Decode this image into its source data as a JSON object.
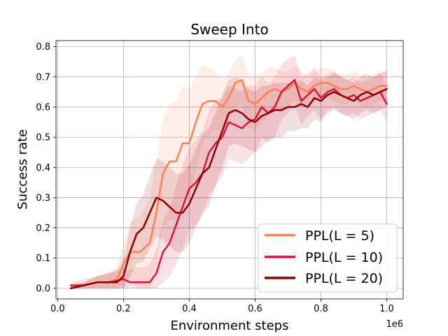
{
  "chart_data": {
    "type": "line",
    "title": "Sweep Into",
    "xlabel": "Environment steps",
    "ylabel": "Success rate",
    "x_offset_label": "1e6",
    "xlim": [
      -0.005,
      1.05
    ],
    "ylim": [
      -0.035,
      0.82
    ],
    "xticks": [
      0.0,
      0.2,
      0.4,
      0.6,
      0.8,
      1.0
    ],
    "xtick_labels": [
      "0.0",
      "0.2",
      "0.4",
      "0.6",
      "0.8",
      "1.0"
    ],
    "yticks": [
      0.0,
      0.1,
      0.2,
      0.3,
      0.4,
      0.5,
      0.6,
      0.7,
      0.8
    ],
    "ytick_labels": [
      "0.0",
      "0.1",
      "0.2",
      "0.3",
      "0.4",
      "0.5",
      "0.6",
      "0.7",
      "0.8"
    ],
    "grid": true,
    "legend_position": "bottom-right",
    "series": [
      {
        "name": "PPL(L = 5)",
        "color": "#ff7f50",
        "x": [
          0.04,
          0.08,
          0.12,
          0.15,
          0.18,
          0.2,
          0.22,
          0.25,
          0.28,
          0.3,
          0.32,
          0.34,
          0.36,
          0.38,
          0.4,
          0.42,
          0.44,
          0.46,
          0.48,
          0.5,
          0.52,
          0.54,
          0.56,
          0.58,
          0.6,
          0.62,
          0.64,
          0.66,
          0.68,
          0.7,
          0.72,
          0.74,
          0.76,
          0.78,
          0.8,
          0.82,
          0.84,
          0.86,
          0.88,
          0.9,
          0.92,
          0.94,
          0.96,
          0.98,
          1.0
        ],
        "values": [
          0.0,
          0.01,
          0.02,
          0.02,
          0.03,
          0.08,
          0.12,
          0.12,
          0.15,
          0.25,
          0.38,
          0.42,
          0.42,
          0.48,
          0.48,
          0.55,
          0.61,
          0.62,
          0.62,
          0.6,
          0.63,
          0.68,
          0.69,
          0.62,
          0.61,
          0.63,
          0.65,
          0.66,
          0.65,
          0.66,
          0.68,
          0.66,
          0.65,
          0.67,
          0.68,
          0.68,
          0.67,
          0.66,
          0.66,
          0.67,
          0.66,
          0.65,
          0.66,
          0.67,
          0.67
        ],
        "band_width": [
          0.01,
          0.01,
          0.02,
          0.03,
          0.04,
          0.07,
          0.1,
          0.12,
          0.15,
          0.17,
          0.18,
          0.19,
          0.2,
          0.19,
          0.18,
          0.15,
          0.13,
          0.11,
          0.1,
          0.09,
          0.08,
          0.08,
          0.08,
          0.09,
          0.09,
          0.08,
          0.08,
          0.07,
          0.07,
          0.06,
          0.06,
          0.06,
          0.05,
          0.05,
          0.05,
          0.05,
          0.05,
          0.05,
          0.05,
          0.05,
          0.05,
          0.05,
          0.05,
          0.05,
          0.05
        ]
      },
      {
        "name": "PPL(L = 10)",
        "color": "#dc143c",
        "x": [
          0.04,
          0.08,
          0.12,
          0.16,
          0.2,
          0.22,
          0.24,
          0.26,
          0.28,
          0.3,
          0.32,
          0.34,
          0.36,
          0.38,
          0.4,
          0.42,
          0.44,
          0.46,
          0.48,
          0.5,
          0.52,
          0.54,
          0.56,
          0.58,
          0.6,
          0.62,
          0.64,
          0.66,
          0.68,
          0.7,
          0.72,
          0.74,
          0.76,
          0.78,
          0.8,
          0.82,
          0.84,
          0.86,
          0.88,
          0.9,
          0.92,
          0.94,
          0.96,
          0.98,
          1.0
        ],
        "values": [
          0.01,
          0.01,
          0.02,
          0.02,
          0.03,
          0.02,
          0.02,
          0.02,
          0.02,
          0.05,
          0.12,
          0.15,
          0.21,
          0.27,
          0.33,
          0.35,
          0.38,
          0.45,
          0.48,
          0.5,
          0.55,
          0.54,
          0.53,
          0.55,
          0.56,
          0.6,
          0.58,
          0.6,
          0.65,
          0.67,
          0.69,
          0.62,
          0.64,
          0.66,
          0.63,
          0.65,
          0.66,
          0.64,
          0.63,
          0.64,
          0.62,
          0.63,
          0.64,
          0.65,
          0.61
        ],
        "band_width": [
          0.01,
          0.02,
          0.02,
          0.03,
          0.04,
          0.04,
          0.05,
          0.05,
          0.06,
          0.08,
          0.1,
          0.11,
          0.13,
          0.14,
          0.14,
          0.14,
          0.14,
          0.14,
          0.14,
          0.13,
          0.12,
          0.12,
          0.12,
          0.12,
          0.11,
          0.1,
          0.1,
          0.1,
          0.09,
          0.09,
          0.08,
          0.08,
          0.07,
          0.07,
          0.07,
          0.06,
          0.06,
          0.06,
          0.06,
          0.06,
          0.06,
          0.06,
          0.06,
          0.06,
          0.06
        ]
      },
      {
        "name": "PPL(L = 20)",
        "color": "#8b0000",
        "x": [
          0.04,
          0.08,
          0.12,
          0.15,
          0.18,
          0.2,
          0.22,
          0.24,
          0.26,
          0.28,
          0.3,
          0.32,
          0.34,
          0.36,
          0.38,
          0.4,
          0.42,
          0.44,
          0.46,
          0.48,
          0.5,
          0.52,
          0.54,
          0.56,
          0.58,
          0.6,
          0.62,
          0.64,
          0.66,
          0.68,
          0.7,
          0.72,
          0.74,
          0.76,
          0.78,
          0.8,
          0.82,
          0.84,
          0.86,
          0.88,
          0.9,
          0.92,
          0.94,
          0.96,
          0.98,
          1.0
        ],
        "values": [
          0.0,
          0.01,
          0.02,
          0.02,
          0.02,
          0.04,
          0.12,
          0.18,
          0.2,
          0.25,
          0.3,
          0.29,
          0.27,
          0.25,
          0.25,
          0.28,
          0.33,
          0.38,
          0.4,
          0.46,
          0.52,
          0.58,
          0.59,
          0.58,
          0.56,
          0.55,
          0.57,
          0.58,
          0.59,
          0.59,
          0.6,
          0.6,
          0.61,
          0.6,
          0.63,
          0.62,
          0.64,
          0.65,
          0.64,
          0.63,
          0.62,
          0.64,
          0.65,
          0.64,
          0.65,
          0.66
        ],
        "band_width": [
          0.01,
          0.01,
          0.02,
          0.03,
          0.04,
          0.06,
          0.08,
          0.1,
          0.11,
          0.12,
          0.13,
          0.13,
          0.13,
          0.13,
          0.13,
          0.13,
          0.13,
          0.13,
          0.13,
          0.12,
          0.12,
          0.11,
          0.11,
          0.11,
          0.1,
          0.1,
          0.1,
          0.09,
          0.09,
          0.09,
          0.08,
          0.08,
          0.08,
          0.07,
          0.07,
          0.07,
          0.06,
          0.06,
          0.06,
          0.06,
          0.06,
          0.06,
          0.06,
          0.06,
          0.06,
          0.06
        ]
      }
    ]
  }
}
